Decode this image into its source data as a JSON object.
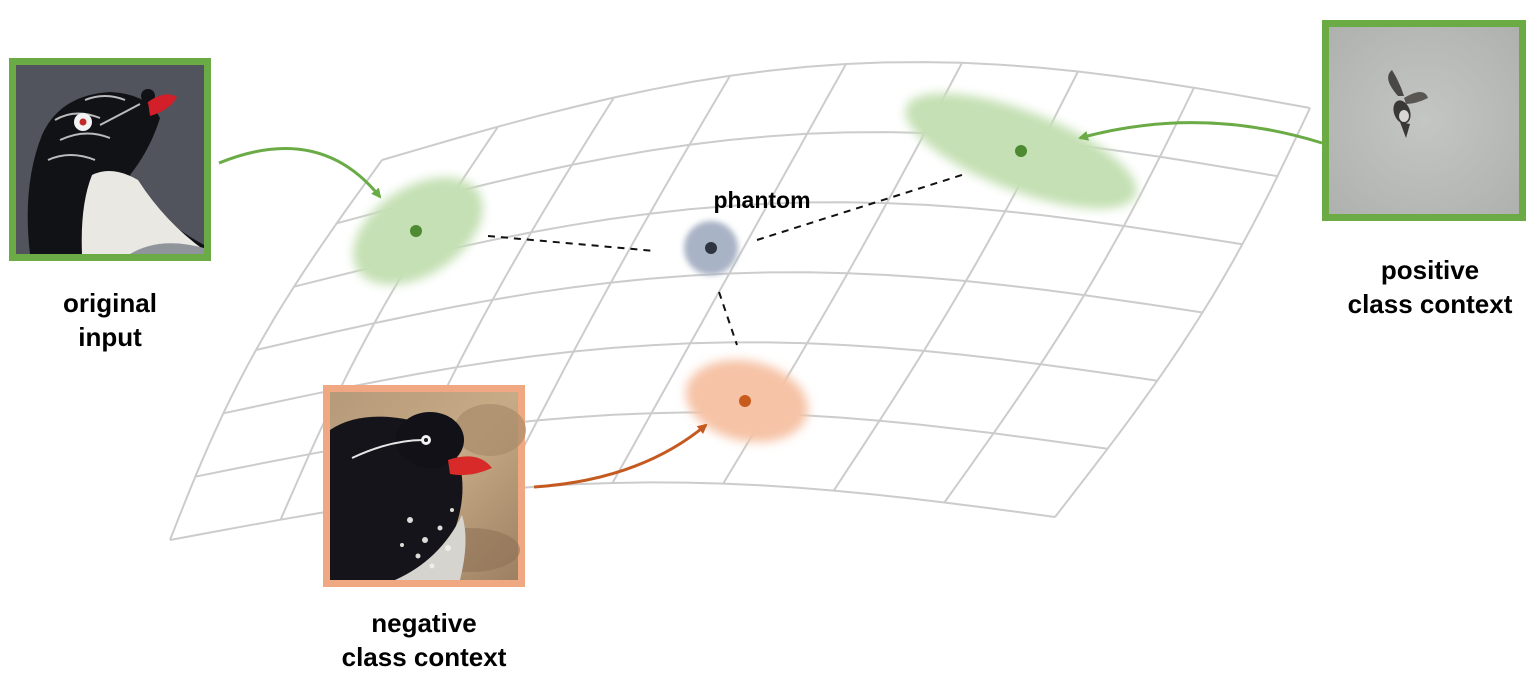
{
  "labels": {
    "phantom": "phantom",
    "original_input": [
      "original",
      "input"
    ],
    "positive_context": [
      "positive",
      "class context"
    ],
    "negative_context": [
      "negative",
      "class context"
    ]
  },
  "images": {
    "original_input": "bird photograph: black-and-white auklet with red beak and white eye",
    "positive_context": "bird photograph: small bird in flight over grey sky",
    "negative_context": "bird photograph: dark auklet with red beak resting on rocks"
  },
  "colors": {
    "positive": "#6aab45",
    "positive_region": "#c5e0b4",
    "positive_point": "#4e8a32",
    "negative": "#f0a882",
    "negative_region": "#f6c3a6",
    "negative_point": "#c85a1c",
    "negative_arrow": "#c55a20",
    "phantom_region": "#a9b3c6",
    "phantom_point": "#2e3440",
    "grid": "#cccccc"
  }
}
